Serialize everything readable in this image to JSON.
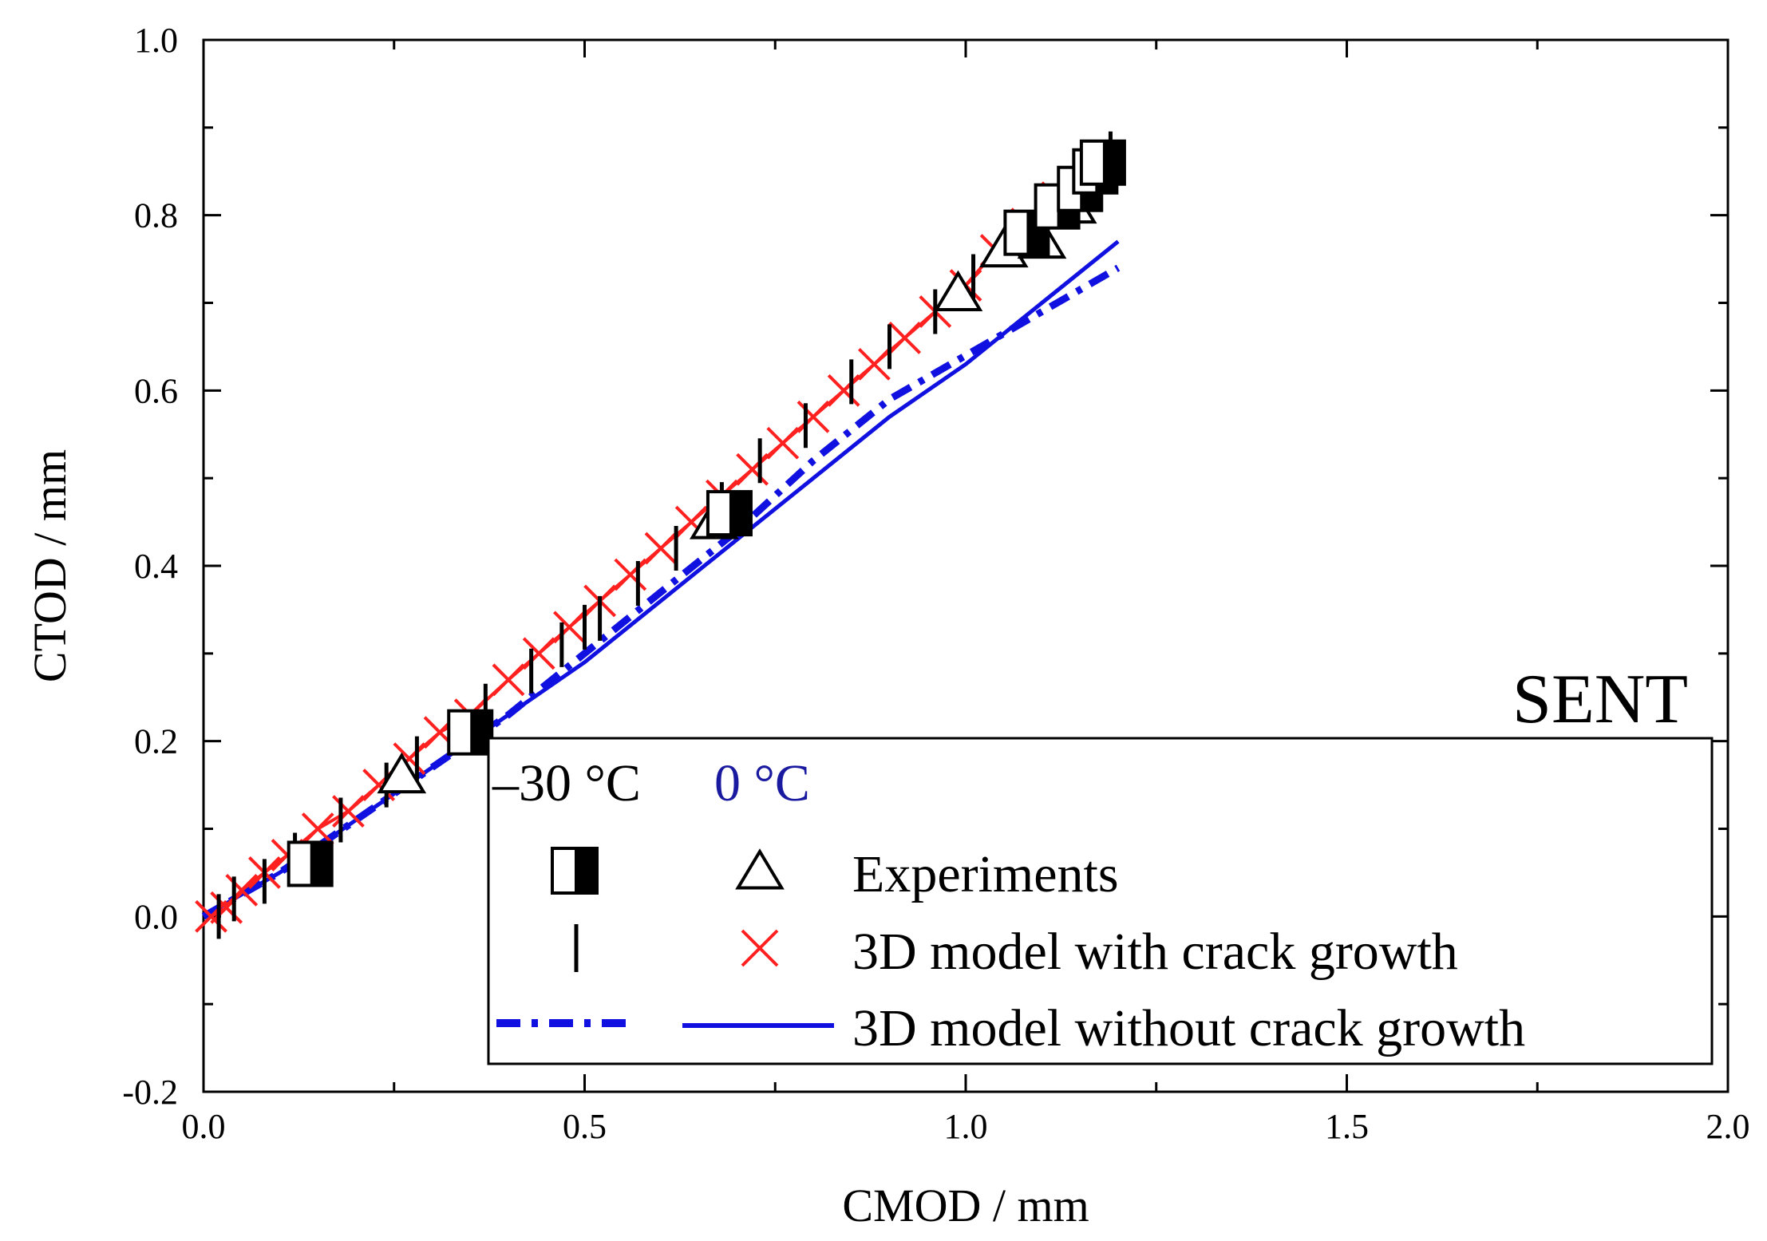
{
  "chart_data": {
    "type": "scatter",
    "xlabel": "CMOD / mm",
    "ylabel": "CTOD / mm",
    "xlim": [
      0.0,
      2.0
    ],
    "ylim": [
      -0.2,
      1.0
    ],
    "x_ticks": [
      "0.0",
      "0.5",
      "1.0",
      "1.5",
      "2.0"
    ],
    "y_ticks": [
      "-0.2",
      "0.0",
      "0.2",
      "0.4",
      "0.6",
      "0.8",
      "1.0"
    ],
    "annotation": "SENT",
    "legend": {
      "placement": "bottom-right",
      "header_left": "–30 °C",
      "header_right": "0 °C",
      "entries": [
        "Experiments",
        "3D model with crack growth",
        "3D model without crack growth"
      ]
    },
    "colors": {
      "black": "#000000",
      "red": "#ff2020",
      "blue": "#1010e0",
      "blue_label": "#1a1aa0"
    },
    "series": [
      {
        "name": "Experiments",
        "temperature": "–30 °C",
        "marker": "half-filled-square",
        "points": [
          [
            0.14,
            0.06
          ],
          [
            0.35,
            0.21
          ],
          [
            0.69,
            0.46
          ],
          [
            1.08,
            0.78
          ],
          [
            1.12,
            0.81
          ],
          [
            1.15,
            0.83
          ],
          [
            1.17,
            0.85
          ],
          [
            1.18,
            0.86
          ]
        ]
      },
      {
        "name": "Experiments",
        "temperature": "0 °C",
        "marker": "open-triangle",
        "points": [
          [
            0.26,
            0.16
          ],
          [
            0.67,
            0.45
          ],
          [
            0.99,
            0.71
          ],
          [
            1.05,
            0.76
          ],
          [
            1.1,
            0.77
          ],
          [
            1.14,
            0.81
          ]
        ]
      },
      {
        "name": "3D model with crack growth",
        "temperature": "–30 °C",
        "marker": "vertical-bar",
        "points": [
          [
            0.02,
            0.0
          ],
          [
            0.04,
            0.02
          ],
          [
            0.08,
            0.04
          ],
          [
            0.12,
            0.07
          ],
          [
            0.18,
            0.11
          ],
          [
            0.24,
            0.15
          ],
          [
            0.28,
            0.18
          ],
          [
            0.33,
            0.21
          ],
          [
            0.37,
            0.24
          ],
          [
            0.43,
            0.28
          ],
          [
            0.47,
            0.31
          ],
          [
            0.5,
            0.33
          ],
          [
            0.52,
            0.34
          ],
          [
            0.57,
            0.38
          ],
          [
            0.62,
            0.42
          ],
          [
            0.68,
            0.47
          ],
          [
            0.73,
            0.52
          ],
          [
            0.79,
            0.56
          ],
          [
            0.85,
            0.61
          ],
          [
            0.9,
            0.65
          ],
          [
            0.96,
            0.69
          ],
          [
            1.01,
            0.73
          ],
          [
            1.07,
            0.78
          ],
          [
            1.12,
            0.81
          ],
          [
            1.15,
            0.84
          ],
          [
            1.17,
            0.85
          ],
          [
            1.19,
            0.87
          ]
        ]
      },
      {
        "name": "3D model with crack growth",
        "temperature": "0 °C",
        "marker": "cross",
        "points": [
          [
            0.01,
            0.0
          ],
          [
            0.03,
            0.01
          ],
          [
            0.05,
            0.03
          ],
          [
            0.08,
            0.05
          ],
          [
            0.11,
            0.07
          ],
          [
            0.15,
            0.1
          ],
          [
            0.19,
            0.12
          ],
          [
            0.23,
            0.15
          ],
          [
            0.27,
            0.18
          ],
          [
            0.31,
            0.21
          ],
          [
            0.35,
            0.23
          ],
          [
            0.4,
            0.27
          ],
          [
            0.44,
            0.3
          ],
          [
            0.48,
            0.33
          ],
          [
            0.52,
            0.36
          ],
          [
            0.56,
            0.39
          ],
          [
            0.6,
            0.42
          ],
          [
            0.64,
            0.45
          ],
          [
            0.68,
            0.48
          ],
          [
            0.72,
            0.51
          ],
          [
            0.76,
            0.54
          ],
          [
            0.8,
            0.57
          ],
          [
            0.84,
            0.6
          ],
          [
            0.88,
            0.63
          ],
          [
            0.92,
            0.66
          ],
          [
            0.96,
            0.69
          ],
          [
            1.0,
            0.72
          ],
          [
            1.04,
            0.76
          ],
          [
            1.08,
            0.79
          ],
          [
            1.12,
            0.82
          ]
        ]
      },
      {
        "name": "3D model without crack growth",
        "temperature": "–30 °C",
        "style": "dash-dot",
        "points": [
          [
            0.0,
            0.0
          ],
          [
            0.1,
            0.05
          ],
          [
            0.2,
            0.11
          ],
          [
            0.3,
            0.17
          ],
          [
            0.4,
            0.23
          ],
          [
            0.5,
            0.3
          ],
          [
            0.6,
            0.37
          ],
          [
            0.7,
            0.44
          ],
          [
            0.8,
            0.52
          ],
          [
            0.9,
            0.59
          ],
          [
            1.0,
            0.64
          ],
          [
            1.1,
            0.69
          ],
          [
            1.2,
            0.74
          ]
        ]
      },
      {
        "name": "3D model without crack growth",
        "temperature": "0 °C",
        "style": "solid",
        "points": [
          [
            0.0,
            0.0
          ],
          [
            0.1,
            0.05
          ],
          [
            0.2,
            0.11
          ],
          [
            0.3,
            0.17
          ],
          [
            0.4,
            0.23
          ],
          [
            0.5,
            0.29
          ],
          [
            0.6,
            0.36
          ],
          [
            0.7,
            0.43
          ],
          [
            0.8,
            0.5
          ],
          [
            0.9,
            0.57
          ],
          [
            1.0,
            0.63
          ],
          [
            1.1,
            0.7
          ],
          [
            1.2,
            0.77
          ]
        ]
      }
    ]
  }
}
